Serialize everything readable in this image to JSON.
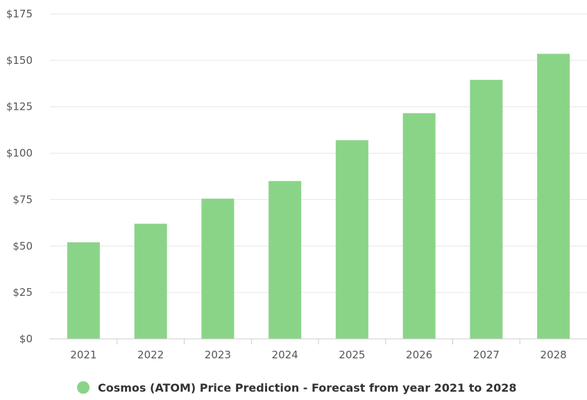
{
  "chart_data": {
    "type": "bar",
    "title": "",
    "xlabel": "",
    "ylabel": "",
    "categories": [
      "2021",
      "2022",
      "2023",
      "2024",
      "2025",
      "2026",
      "2027",
      "2028"
    ],
    "series": [
      {
        "name": "Cosmos (ATOM) Price Prediction - Forecast from year 2021 to 2028",
        "values": [
          52,
          62,
          75.5,
          85,
          107,
          121.5,
          139.5,
          153.5
        ],
        "color": "#8ad488"
      }
    ],
    "ylim": [
      0,
      175
    ],
    "yticks": [
      0,
      25,
      50,
      75,
      100,
      125,
      150,
      175
    ],
    "ytick_labels": [
      "$0",
      "$25",
      "$50",
      "$75",
      "$100",
      "$125",
      "$150",
      "$175"
    ],
    "grid": true,
    "legend_position": "bottom-center"
  }
}
